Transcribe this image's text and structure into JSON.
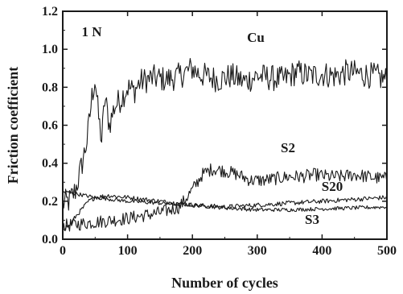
{
  "chart_data": {
    "type": "line",
    "title": "",
    "xlabel": "Number of cycles",
    "ylabel": "Friction coefficient",
    "xlim": [
      0,
      500
    ],
    "ylim": [
      0,
      1.2
    ],
    "x_ticks": [
      "0",
      "100",
      "200",
      "300",
      "400",
      "500"
    ],
    "y_ticks": [
      "0.0",
      "0.2",
      "0.4",
      "0.6",
      "0.8",
      "1.0",
      "1.2"
    ],
    "grid": false,
    "line_color": "#1a1a1a",
    "annotations": [
      {
        "text": "1 N"
      }
    ],
    "series": [
      {
        "name": "Cu",
        "points": [
          [
            0,
            0.19
          ],
          [
            10,
            0.2
          ],
          [
            20,
            0.26
          ],
          [
            30,
            0.4
          ],
          [
            38,
            0.53
          ],
          [
            45,
            0.75
          ],
          [
            50,
            0.85
          ],
          [
            55,
            0.65
          ],
          [
            60,
            0.52
          ],
          [
            65,
            0.75
          ],
          [
            72,
            0.6
          ],
          [
            80,
            0.7
          ],
          [
            90,
            0.74
          ],
          [
            100,
            0.8
          ],
          [
            110,
            0.78
          ],
          [
            120,
            0.83
          ],
          [
            140,
            0.85
          ],
          [
            160,
            0.84
          ],
          [
            180,
            0.86
          ],
          [
            200,
            0.9
          ],
          [
            210,
            0.87
          ],
          [
            220,
            0.86
          ],
          [
            240,
            0.84
          ],
          [
            260,
            0.86
          ],
          [
            280,
            0.83
          ],
          [
            300,
            0.86
          ],
          [
            320,
            0.85
          ],
          [
            340,
            0.84
          ],
          [
            360,
            0.88
          ],
          [
            380,
            0.86
          ],
          [
            400,
            0.87
          ],
          [
            420,
            0.86
          ],
          [
            440,
            0.88
          ],
          [
            460,
            0.87
          ],
          [
            480,
            0.86
          ],
          [
            500,
            0.84
          ]
        ],
        "noise": 0.07
      },
      {
        "name": "S2",
        "points": [
          [
            0,
            0.07
          ],
          [
            50,
            0.09
          ],
          [
            100,
            0.11
          ],
          [
            150,
            0.14
          ],
          [
            180,
            0.17
          ],
          [
            200,
            0.26
          ],
          [
            215,
            0.34
          ],
          [
            230,
            0.37
          ],
          [
            250,
            0.36
          ],
          [
            270,
            0.34
          ],
          [
            290,
            0.31
          ],
          [
            310,
            0.31
          ],
          [
            330,
            0.32
          ],
          [
            350,
            0.33
          ],
          [
            370,
            0.33
          ],
          [
            390,
            0.34
          ],
          [
            410,
            0.33
          ],
          [
            430,
            0.33
          ],
          [
            450,
            0.34
          ],
          [
            470,
            0.33
          ],
          [
            490,
            0.32
          ],
          [
            500,
            0.32
          ]
        ],
        "noise": 0.035
      },
      {
        "name": "S20",
        "points": [
          [
            0,
            0.06
          ],
          [
            10,
            0.07
          ],
          [
            20,
            0.12
          ],
          [
            30,
            0.16
          ],
          [
            40,
            0.2
          ],
          [
            50,
            0.22
          ],
          [
            70,
            0.23
          ],
          [
            100,
            0.22
          ],
          [
            150,
            0.2
          ],
          [
            200,
            0.18
          ],
          [
            250,
            0.17
          ],
          [
            300,
            0.18
          ],
          [
            350,
            0.19
          ],
          [
            400,
            0.2
          ],
          [
            450,
            0.21
          ],
          [
            500,
            0.22
          ]
        ],
        "noise": 0.012
      },
      {
        "name": "S3",
        "points": [
          [
            0,
            0.25
          ],
          [
            20,
            0.24
          ],
          [
            50,
            0.22
          ],
          [
            100,
            0.2
          ],
          [
            150,
            0.19
          ],
          [
            200,
            0.18
          ],
          [
            250,
            0.165
          ],
          [
            300,
            0.155
          ],
          [
            350,
            0.155
          ],
          [
            400,
            0.16
          ],
          [
            450,
            0.165
          ],
          [
            500,
            0.17
          ]
        ],
        "noise": 0.01
      }
    ]
  }
}
